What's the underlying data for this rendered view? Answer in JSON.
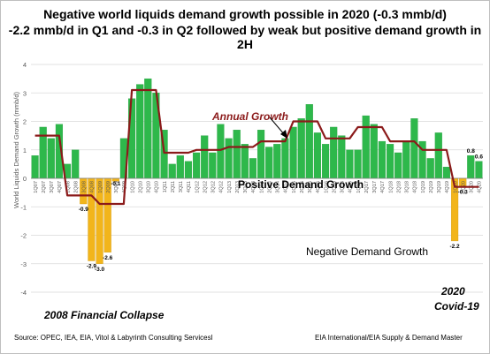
{
  "title": "Negative world liquids demand growth possible in 2020 (-0.3 mmb/d)",
  "subtitle": "-2.2 mmb/d in Q1 and -0.3 in Q2 followed by weak but positive demand growth in 2H",
  "source_left": "Source: OPEC,  IEA, EIA, Vitol  & Labyrinth Consulting Servicesl",
  "source_right": "EIA International/EIA Supply & Demand Master",
  "annotations": {
    "annual_growth": "Annual Growth",
    "positive": "Positive Demand Growth",
    "negative": "Negative Demand Growth",
    "collapse": "2008 Financial Collapse",
    "covid_year": "2020",
    "covid_name": "Covid-19"
  },
  "colors": {
    "positive_bar": "#2eb84b",
    "negative_bar": "#f2b51b",
    "annual_line": "#8b1a1a",
    "grid": "#d9d9d9",
    "axis_text": "#595959",
    "frame": "#bfbfbf"
  },
  "chart_data": {
    "type": "bar",
    "ylabel": "World Liquids Demand Growth (mmb/d)",
    "ylim": [
      -4,
      4
    ],
    "yticks": [
      "-4",
      "-3",
      "-2",
      "-1",
      "0",
      "1",
      "2",
      "3",
      "4"
    ],
    "grid": true,
    "categories": [
      "1Q07",
      "2Q07",
      "3Q07",
      "4Q07",
      "1Q08",
      "2Q08",
      "3Q08",
      "4Q08",
      "1Q09",
      "2Q09",
      "3Q09",
      "4Q09",
      "1Q10",
      "2Q10",
      "3Q10",
      "4Q10",
      "1Q11",
      "2Q11",
      "3Q11",
      "4Q11",
      "1Q12",
      "2Q12",
      "3Q12",
      "4Q12",
      "1Q13",
      "2Q13",
      "3Q13",
      "4Q13",
      "1Q14",
      "2Q14",
      "3Q14",
      "4Q14",
      "1Q15",
      "2Q15",
      "3Q15",
      "4Q15",
      "1Q16",
      "2Q16",
      "3Q16",
      "4Q16",
      "1Q17",
      "2Q17",
      "3Q17",
      "4Q17",
      "1Q18",
      "2Q18",
      "3Q18",
      "4Q18",
      "1Q19",
      "2Q19",
      "3Q19",
      "4Q19",
      "1Q20",
      "2Q20",
      "3Q20",
      "4Q20"
    ],
    "series": [
      {
        "values": [
          0.8,
          1.8,
          1.4,
          1.9,
          0.5,
          1.0,
          -0.9,
          -2.9,
          -3.0,
          -2.6,
          -0.1,
          1.4,
          2.8,
          3.3,
          3.5,
          3.0,
          1.7,
          0.5,
          0.8,
          0.6,
          0.9,
          1.5,
          0.9,
          1.9,
          1.4,
          1.7,
          1.2,
          0.7,
          1.7,
          1.1,
          1.2,
          1.4,
          1.8,
          2.1,
          2.6,
          1.6,
          1.2,
          1.8,
          1.5,
          1.0,
          1.0,
          2.2,
          1.9,
          1.3,
          1.2,
          0.9,
          1.3,
          2.1,
          1.3,
          0.7,
          1.6,
          0.4,
          -2.2,
          -0.3,
          0.8,
          0.6
        ]
      },
      {
        "name": "Annual Growth",
        "type": "step-line",
        "values": [
          1.5,
          1.5,
          1.5,
          1.5,
          -0.6,
          -0.6,
          -0.6,
          -0.6,
          -0.9,
          -0.9,
          -0.9,
          -0.9,
          3.1,
          3.1,
          3.1,
          3.1,
          0.9,
          0.9,
          0.9,
          0.9,
          1.0,
          1.0,
          1.0,
          1.0,
          1.1,
          1.1,
          1.1,
          1.1,
          1.3,
          1.3,
          1.3,
          1.3,
          2.0,
          2.0,
          2.0,
          2.0,
          1.4,
          1.4,
          1.4,
          1.4,
          1.8,
          1.8,
          1.8,
          1.8,
          1.3,
          1.3,
          1.3,
          1.3,
          1.0,
          1.0,
          1.0,
          1.0,
          -0.3,
          -0.3,
          -0.3,
          -0.3
        ]
      }
    ],
    "data_labels": [
      {
        "category": "3Q08",
        "text": "-0.9"
      },
      {
        "category": "4Q08",
        "text": "-2.9"
      },
      {
        "category": "1Q09",
        "text": "-3.0"
      },
      {
        "category": "2Q09",
        "text": "-2.6"
      },
      {
        "category": "3Q09",
        "text": "-0.1"
      },
      {
        "category": "1Q20",
        "text": "-2.2"
      },
      {
        "category": "2Q20",
        "text": "-0.3"
      },
      {
        "category": "3Q20",
        "text": "0.8"
      },
      {
        "category": "4Q20",
        "text": "0.6"
      }
    ]
  }
}
